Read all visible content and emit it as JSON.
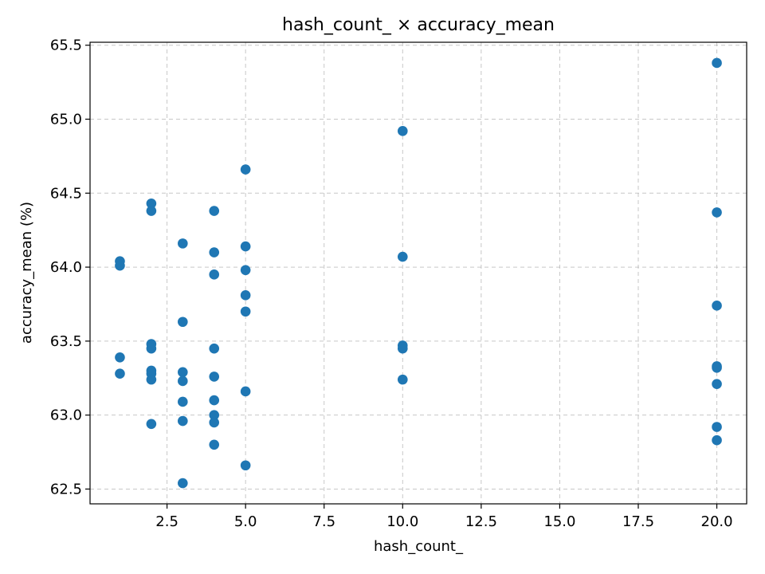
{
  "chart_data": {
    "type": "scatter",
    "title": "hash_count_ × accuracy_mean",
    "xlabel": "hash_count_",
    "ylabel": "accuracy_mean (%)",
    "xlim": [
      0.05,
      20.95
    ],
    "ylim": [
      62.4,
      65.52
    ],
    "xticks": [
      2.5,
      5.0,
      7.5,
      10.0,
      12.5,
      15.0,
      17.5,
      20.0
    ],
    "xtick_labels": [
      "2.5",
      "5.0",
      "7.5",
      "10.0",
      "12.5",
      "15.0",
      "17.5",
      "20.0"
    ],
    "yticks": [
      62.5,
      63.0,
      63.5,
      64.0,
      64.5,
      65.0,
      65.5
    ],
    "ytick_labels": [
      "62.5",
      "63.0",
      "63.5",
      "64.0",
      "64.5",
      "65.0",
      "65.5"
    ],
    "grid": true,
    "marker_color": "#1f77b4",
    "points": [
      {
        "x": 1,
        "y": 64.04
      },
      {
        "x": 1,
        "y": 64.01
      },
      {
        "x": 1,
        "y": 63.39
      },
      {
        "x": 1,
        "y": 63.28
      },
      {
        "x": 2,
        "y": 64.43
      },
      {
        "x": 2,
        "y": 64.38
      },
      {
        "x": 2,
        "y": 63.48
      },
      {
        "x": 2,
        "y": 63.45
      },
      {
        "x": 2,
        "y": 63.3
      },
      {
        "x": 2,
        "y": 63.28
      },
      {
        "x": 2,
        "y": 63.24
      },
      {
        "x": 2,
        "y": 62.94
      },
      {
        "x": 3,
        "y": 64.16
      },
      {
        "x": 3,
        "y": 63.63
      },
      {
        "x": 3,
        "y": 63.29
      },
      {
        "x": 3,
        "y": 63.23
      },
      {
        "x": 3,
        "y": 63.09
      },
      {
        "x": 3,
        "y": 62.96
      },
      {
        "x": 3,
        "y": 62.54
      },
      {
        "x": 4,
        "y": 64.38
      },
      {
        "x": 4,
        "y": 64.1
      },
      {
        "x": 4,
        "y": 63.95
      },
      {
        "x": 4,
        "y": 63.45
      },
      {
        "x": 4,
        "y": 63.26
      },
      {
        "x": 4,
        "y": 63.1
      },
      {
        "x": 4,
        "y": 63.0
      },
      {
        "x": 4,
        "y": 62.95
      },
      {
        "x": 4,
        "y": 62.8
      },
      {
        "x": 5,
        "y": 64.66
      },
      {
        "x": 5,
        "y": 64.14
      },
      {
        "x": 5,
        "y": 63.98
      },
      {
        "x": 5,
        "y": 63.81
      },
      {
        "x": 5,
        "y": 63.7
      },
      {
        "x": 5,
        "y": 63.16
      },
      {
        "x": 5,
        "y": 62.66
      },
      {
        "x": 10,
        "y": 64.92
      },
      {
        "x": 10,
        "y": 64.07
      },
      {
        "x": 10,
        "y": 63.47
      },
      {
        "x": 10,
        "y": 63.45
      },
      {
        "x": 10,
        "y": 63.24
      },
      {
        "x": 20,
        "y": 65.38
      },
      {
        "x": 20,
        "y": 64.37
      },
      {
        "x": 20,
        "y": 63.74
      },
      {
        "x": 20,
        "y": 63.33
      },
      {
        "x": 20,
        "y": 63.32
      },
      {
        "x": 20,
        "y": 63.21
      },
      {
        "x": 20,
        "y": 62.92
      },
      {
        "x": 20,
        "y": 62.83
      }
    ]
  }
}
